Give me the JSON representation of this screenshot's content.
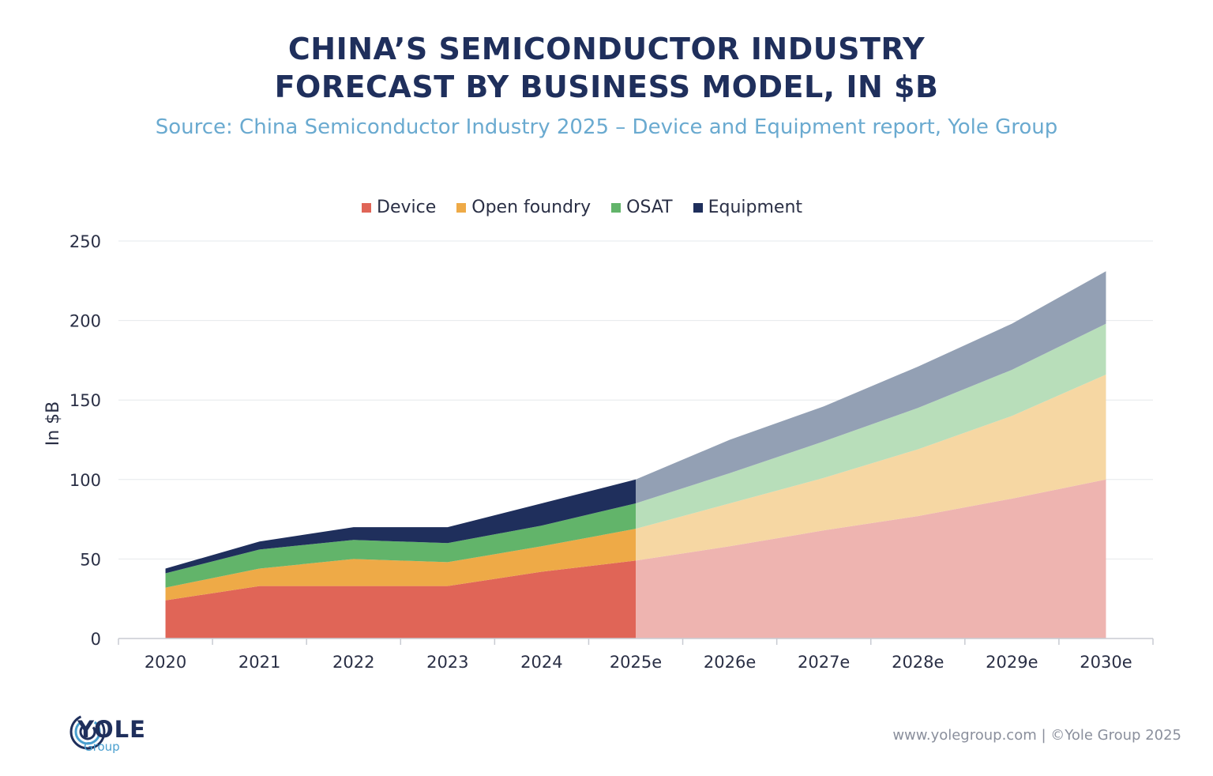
{
  "header": {
    "title_line1": "CHINA’S SEMICONDUCTOR INDUSTRY",
    "title_line2": "FORECAST BY BUSINESS MODEL, IN $B",
    "subtitle": "Source: China Semiconductor Industry 2025 – Device and Equipment report, Yole Group"
  },
  "footer": {
    "text": "www.yolegroup.com | ©Yole Group 2025",
    "logo_name": "YOLE",
    "logo_sub": "Group"
  },
  "colors": {
    "device": "#e06557",
    "open_foundry": "#eeaa47",
    "osat": "#62b46a",
    "equipment": "#1f2f5c",
    "device_forecast": "#eeb4b0",
    "open_foundry_forecast": "#f6d7a3",
    "osat_forecast": "#b8deba",
    "equipment_forecast": "#93a0b4"
  },
  "chart_data": {
    "type": "area",
    "stacked": true,
    "ylabel": "In $B",
    "ylim": [
      0,
      250
    ],
    "yticks": [
      "0",
      "50",
      "100",
      "150",
      "200",
      "250"
    ],
    "categories": [
      "2020",
      "2021",
      "2022",
      "2023",
      "2024",
      "2025e",
      "2026e",
      "2027e",
      "2028e",
      "2029e",
      "2030e"
    ],
    "forecast_start": "2025e",
    "grid": true,
    "legend_position": "top-center",
    "series": [
      {
        "name": "Device",
        "values": [
          24,
          33,
          33,
          33,
          42,
          49,
          58,
          68,
          77,
          88,
          100
        ]
      },
      {
        "name": "Open foundry",
        "values": [
          8,
          11,
          17,
          15,
          16,
          20,
          27,
          33,
          42,
          52,
          66
        ]
      },
      {
        "name": "OSAT",
        "values": [
          9,
          12,
          12,
          12,
          13,
          16,
          19,
          23,
          26,
          29,
          32
        ]
      },
      {
        "name": "Equipment",
        "values": [
          3,
          5,
          8,
          10,
          14,
          15,
          21,
          22,
          26,
          29,
          33
        ]
      }
    ]
  }
}
